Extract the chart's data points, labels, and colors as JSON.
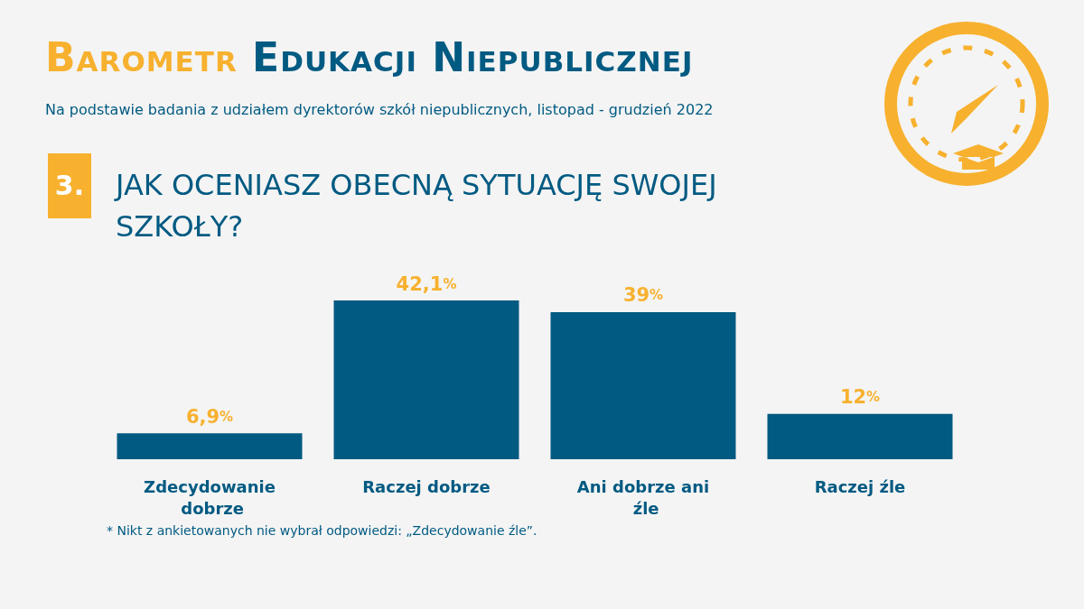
{
  "chart_data": {
    "type": "bar",
    "title": "Barometr Edukacji Niepublicznej",
    "subtitle": "Na podstawie badania z udziałem dyrektorów szkół niepublicznych, listopad - grudzień 2022",
    "annotations": [
      "3.",
      "JAK OCENIASZ OBECNĄ SYTUACJĘ SWOJEJ SZKOŁY?",
      "* Nikt z ankietowanych nie wybrał odpowiedzi: „Zdecydowanie źle”."
    ],
    "categories": [
      "Zdecydowanie dobrze",
      "Raczej dobrze",
      "Ani dobrze ani źle",
      "Raczej źle"
    ],
    "values": [
      6.9,
      42.1,
      39,
      12
    ],
    "value_labels": [
      "6,9%",
      "42,1%",
      "39%",
      "12%"
    ],
    "color": "#005a82"
  }
}
